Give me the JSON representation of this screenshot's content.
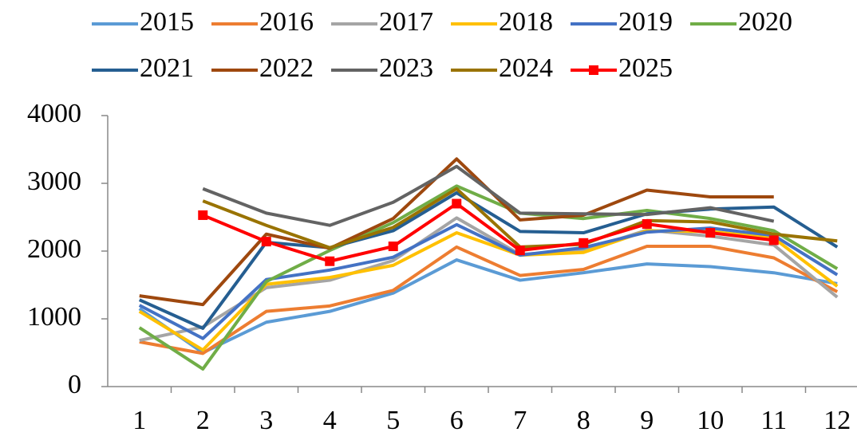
{
  "chart_data": {
    "type": "line",
    "categories": [
      "1",
      "2",
      "3",
      "4",
      "5",
      "6",
      "7",
      "8",
      "9",
      "10",
      "11",
      "12"
    ],
    "ylim": [
      0,
      4000
    ],
    "yticks": [
      0,
      1000,
      2000,
      3000,
      4000
    ],
    "series": [
      {
        "name": "2015",
        "color": "#5b9bd5",
        "values": [
          1150,
          500,
          950,
          1110,
          1380,
          1870,
          1570,
          1680,
          1810,
          1770,
          1680,
          1520
        ]
      },
      {
        "name": "2016",
        "color": "#ed7d31",
        "values": [
          660,
          490,
          1110,
          1190,
          1420,
          2060,
          1640,
          1730,
          2070,
          2070,
          1900,
          1400
        ]
      },
      {
        "name": "2017",
        "color": "#a5a5a5",
        "values": [
          680,
          880,
          1460,
          1570,
          1860,
          2490,
          1950,
          2010,
          2310,
          2220,
          2090,
          1320
        ]
      },
      {
        "name": "2018",
        "color": "#ffc000",
        "values": [
          1110,
          540,
          1510,
          1610,
          1790,
          2270,
          1940,
          1980,
          2300,
          2290,
          2190,
          1480
        ]
      },
      {
        "name": "2019",
        "color": "#4472c4",
        "values": [
          1200,
          710,
          1580,
          1720,
          1910,
          2390,
          1940,
          2050,
          2280,
          2340,
          2230,
          1650
        ]
      },
      {
        "name": "2020",
        "color": "#70ad47",
        "values": [
          870,
          260,
          1550,
          2010,
          2420,
          2960,
          2560,
          2480,
          2600,
          2480,
          2300,
          1740
        ]
      },
      {
        "name": "2021",
        "color": "#255e91",
        "values": [
          1280,
          860,
          2130,
          2050,
          2300,
          2860,
          2290,
          2270,
          2550,
          2620,
          2650,
          2060
        ]
      },
      {
        "name": "2022",
        "color": "#9e480e",
        "values": [
          1340,
          1210,
          2250,
          2040,
          2480,
          3360,
          2460,
          2530,
          2900,
          2800,
          2800,
          null
        ]
      },
      {
        "name": "2023",
        "color": "#636363",
        "values": [
          null,
          2920,
          2560,
          2380,
          2720,
          3250,
          2560,
          2550,
          2540,
          2640,
          2440,
          null
        ]
      },
      {
        "name": "2024",
        "color": "#997300",
        "values": [
          null,
          2740,
          2380,
          2050,
          2350,
          2920,
          2060,
          2100,
          2450,
          2430,
          2250,
          2150
        ]
      },
      {
        "name": "2025",
        "color": "#ff0000",
        "marker": "square",
        "values": [
          null,
          2530,
          2140,
          1850,
          2070,
          2700,
          2010,
          2120,
          2400,
          2270,
          2160,
          null
        ]
      }
    ]
  }
}
